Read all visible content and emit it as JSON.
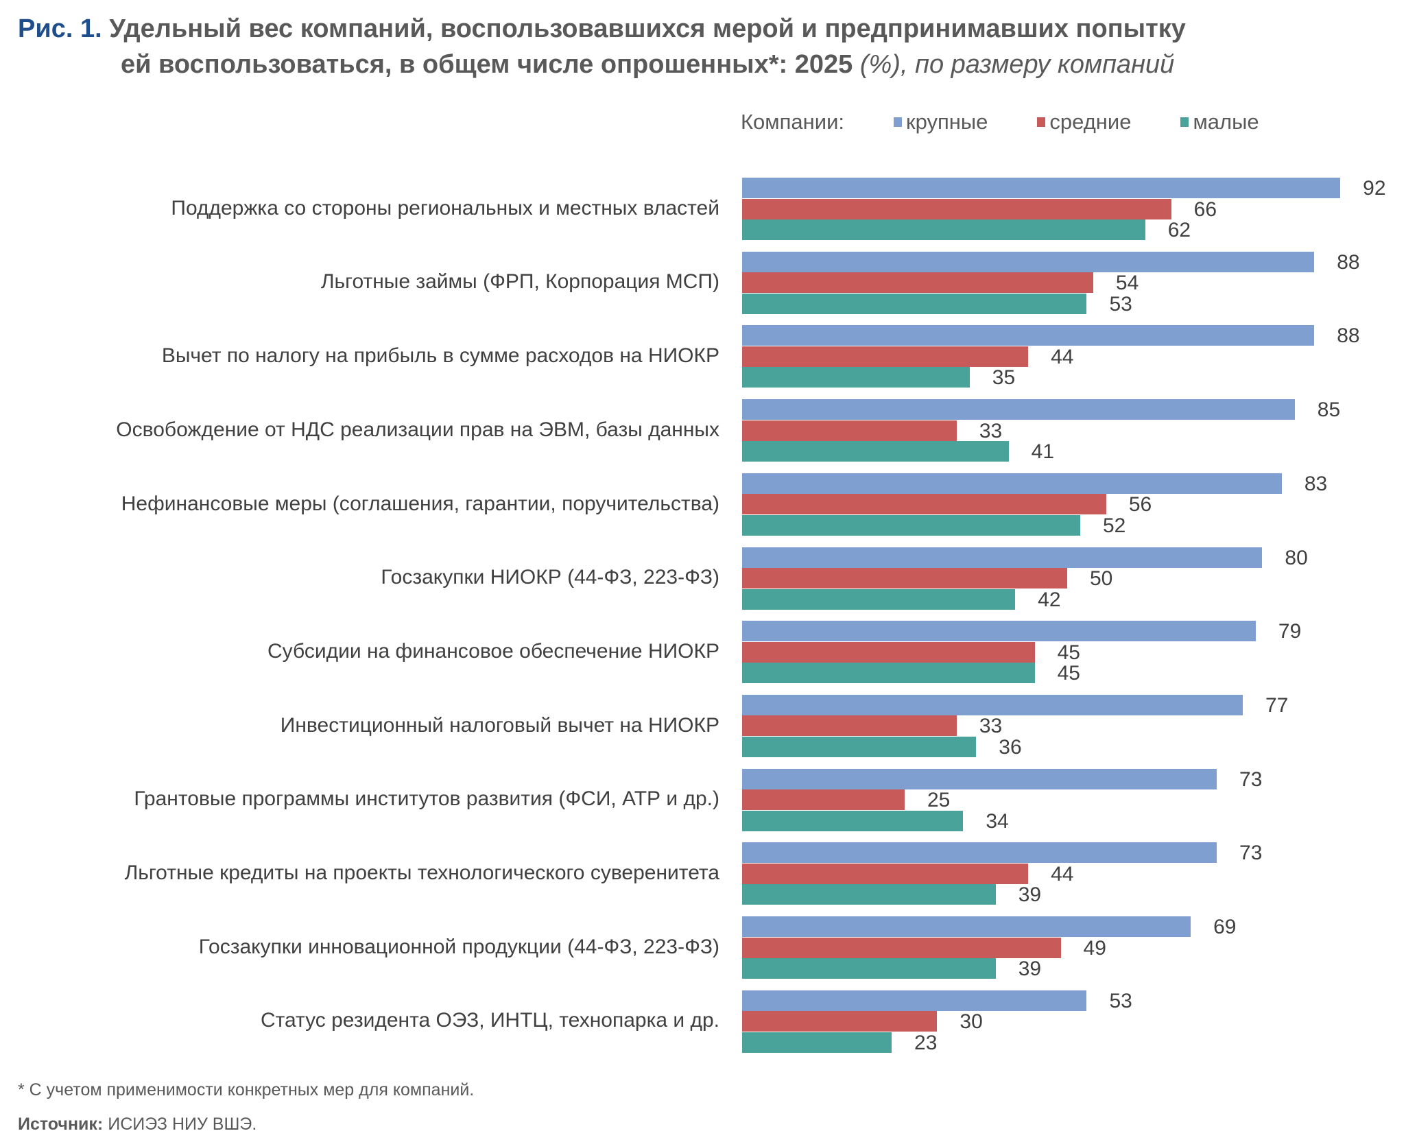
{
  "title": {
    "fig_label": "Рис. 1.",
    "text_line1": "Удельный вес компаний, воспользовавшихся мерой и предпринимавших попытку",
    "text_line2": "ей воспользоваться, в общем числе опрошенных*: 2025",
    "unit": "(%), по размеру компаний"
  },
  "footnote": "* С учетом применимости конкретных мер для компаний.",
  "source_label": "Источник:",
  "source_text": "ИСИЭЗ НИУ ВШЭ.",
  "chart_data": {
    "type": "bar",
    "orientation": "horizontal",
    "legend_title": "Компании:",
    "legend_position": "top",
    "grid": false,
    "xlim": [
      0,
      100
    ],
    "categories": [
      "Поддержка со стороны региональных и местных властей",
      "Льготные займы (ФРП, Корпорация МСП)",
      "Вычет по налогу на прибыль в сумме расходов на НИОКР",
      "Освобождение от НДС реализации прав на ЭВМ, базы данных",
      "Нефинансовые меры (соглашения, гарантии, поручительства)",
      "Госзакупки НИОКР (44-ФЗ, 223-ФЗ)",
      "Субсидии на финансовое обеспечение НИОКР",
      "Инвестиционный налоговый вычет на НИОКР",
      "Грантовые программы институтов развития (ФСИ, АТР и др.)",
      "Льготные кредиты на проекты технологического суверенитета",
      "Госзакупки инновационной продукции (44-ФЗ, 223-ФЗ)",
      "Статус резидента ОЭЗ, ИНТЦ, технопарка и др."
    ],
    "series": [
      {
        "name": "крупные",
        "color": "#7f9fd1",
        "values": [
          92,
          88,
          88,
          85,
          83,
          80,
          79,
          77,
          73,
          73,
          69,
          53
        ]
      },
      {
        "name": "средние",
        "color": "#c85a5a",
        "values": [
          66,
          54,
          44,
          33,
          56,
          50,
          45,
          33,
          25,
          44,
          49,
          30
        ]
      },
      {
        "name": "малые",
        "color": "#4aa39b",
        "values": [
          62,
          53,
          35,
          41,
          52,
          42,
          45,
          36,
          34,
          39,
          39,
          23
        ]
      }
    ]
  }
}
